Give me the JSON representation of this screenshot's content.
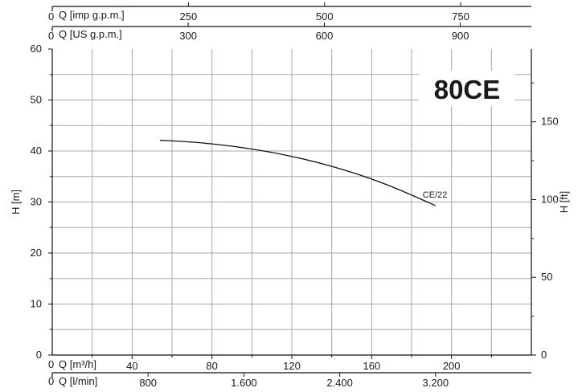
{
  "chart_data": {
    "type": "line",
    "model": "80CE",
    "xlabel": "Q [m³/h]",
    "ylabel": "H [m]",
    "y2label": "H [ft]",
    "xlim": [
      0,
      240
    ],
    "ylim": [
      0,
      60
    ],
    "y2lim": [
      0,
      196.85
    ],
    "x_ticks": [
      "0",
      "40",
      "80",
      "120",
      "160",
      "200"
    ],
    "x_tick_values": [
      0,
      40,
      80,
      120,
      160,
      200
    ],
    "y_ticks": [
      "0",
      "10",
      "20",
      "30",
      "40",
      "50",
      "60"
    ],
    "y_tick_values": [
      0,
      10,
      20,
      30,
      40,
      50,
      60
    ],
    "y2_ticks": [
      "0",
      "50",
      "100",
      "150"
    ],
    "y2_tick_values": [
      0,
      50,
      100,
      150
    ],
    "secondary_axes": [
      {
        "label": "Q [l/min]",
        "zero": "0",
        "ticks": [
          "800",
          "1.600",
          "2.400",
          "3.200"
        ],
        "positions_m3h": [
          48,
          96,
          144,
          192
        ]
      },
      {
        "label": "Q [US g.p.m.]",
        "zero": "0",
        "ticks": [
          "300",
          "600",
          "900"
        ],
        "positions_m3h": [
          68.1,
          136.3,
          204.4
        ]
      },
      {
        "label": "Q [imp g.p.m.]",
        "zero": "0",
        "ticks": [
          "250",
          "500",
          "750"
        ],
        "positions_m3h": [
          68.2,
          136.4,
          204.6
        ]
      }
    ],
    "grid": true,
    "series": [
      {
        "name": "CE/22",
        "x": [
          54,
          70,
          90,
          110,
          130,
          150,
          170,
          192
        ],
        "y": [
          42.1,
          41.8,
          41.0,
          39.8,
          38.1,
          35.9,
          33.1,
          29.3
        ]
      }
    ]
  }
}
